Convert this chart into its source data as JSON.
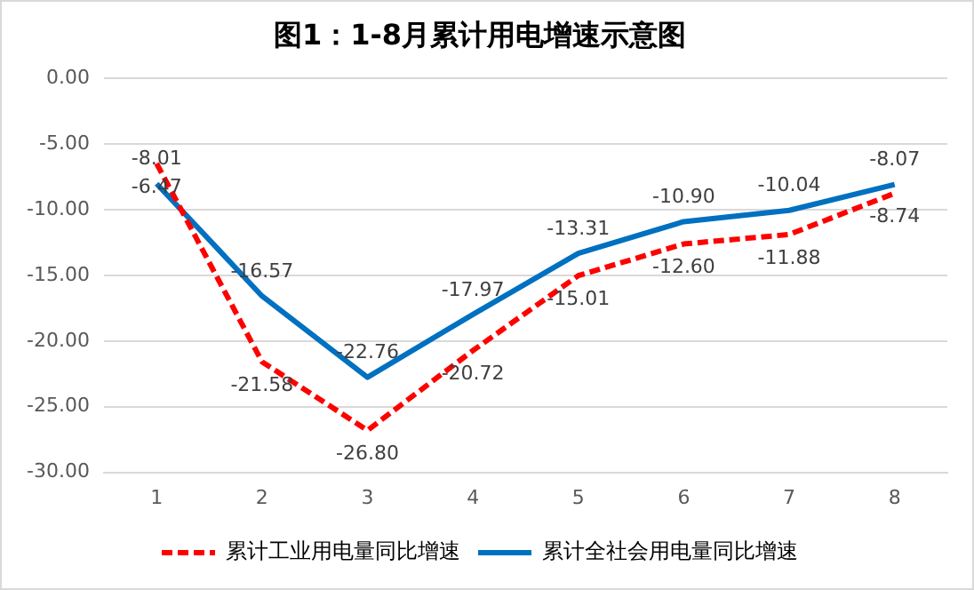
{
  "chart_data": {
    "type": "line",
    "title": "图1：1-8月累计用电增速示意图",
    "categories": [
      "1",
      "2",
      "3",
      "4",
      "5",
      "6",
      "7",
      "8"
    ],
    "series": [
      {
        "name": "累计工业用电量同比增速",
        "color": "#ff0000",
        "line_style": "dashed",
        "values": [
          -6.47,
          -21.58,
          -26.8,
          -20.72,
          -15.01,
          -12.6,
          -11.88,
          -8.74
        ],
        "value_labels": [
          "-6.47",
          "-21.58",
          "-26.80",
          "-20.72",
          "-15.01",
          "-12.60",
          "-11.88",
          "-8.74"
        ]
      },
      {
        "name": "累计全社会用电量同比增速",
        "color": "#0070c0",
        "line_style": "solid",
        "values": [
          -8.01,
          -16.57,
          -22.76,
          -17.97,
          -13.31,
          -10.9,
          -10.04,
          -8.07
        ],
        "value_labels": [
          "-8.01",
          "-16.57",
          "-22.76",
          "-17.97",
          "-13.31",
          "-10.90",
          "-10.04",
          "-8.07"
        ]
      }
    ],
    "ylim": [
      -30,
      0
    ],
    "yticks": [
      {
        "value": 0,
        "label": "0.00"
      },
      {
        "value": -5,
        "label": "-5.00"
      },
      {
        "value": -10,
        "label": "-10.00"
      },
      {
        "value": -15,
        "label": "-15.00"
      },
      {
        "value": -20,
        "label": "-20.00"
      },
      {
        "value": -25,
        "label": "-25.00"
      },
      {
        "value": -30,
        "label": "-30.00"
      }
    ],
    "grid": "y",
    "legend": "bottom",
    "marker": "none"
  }
}
